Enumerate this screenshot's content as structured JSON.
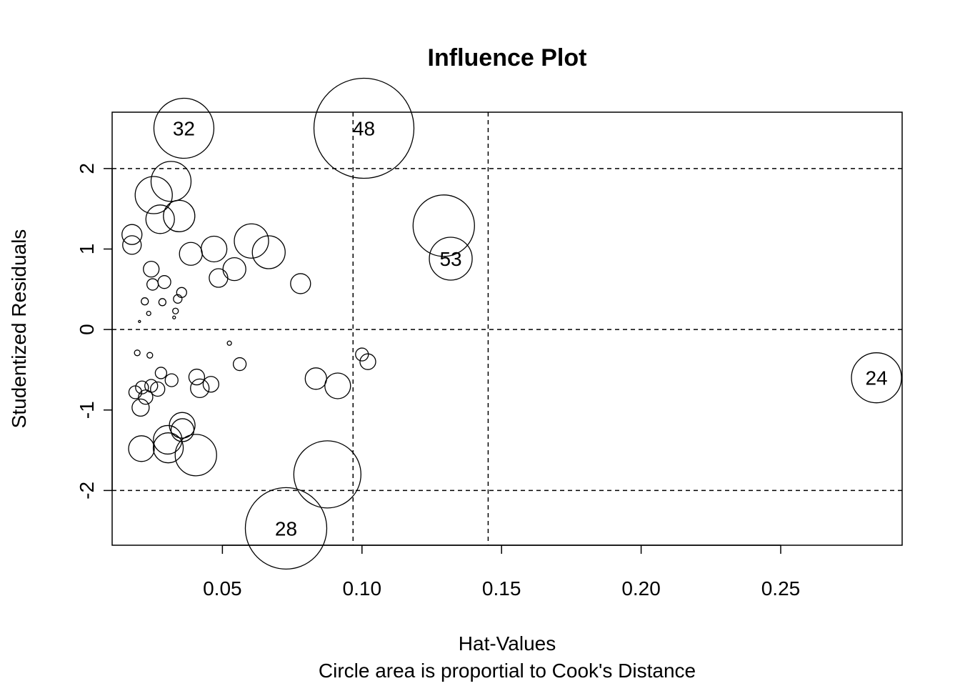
{
  "chart_data": {
    "type": "scatter",
    "title": "Influence Plot",
    "xlabel": "Hat-Values",
    "xlabel_sub": "Circle area is proportial to Cook's Distance",
    "ylabel": "Studentized Residuals",
    "xlim": [
      0.0105,
      0.2935
    ],
    "ylim": [
      -2.68,
      2.7
    ],
    "x_ticks": [
      0.05,
      0.1,
      0.15,
      0.2,
      0.25
    ],
    "x_tick_labels": [
      "0.05",
      "0.10",
      "0.15",
      "0.20",
      "0.25"
    ],
    "y_ticks": [
      -2,
      -1,
      0,
      1,
      2
    ],
    "y_tick_labels": [
      "-2",
      "-1",
      "0",
      "1",
      "2"
    ],
    "ref_lines": {
      "h": [
        -2,
        0,
        2
      ],
      "v": [
        0.0968,
        0.1452
      ]
    },
    "grid": false,
    "size_variable": "Cook's Distance",
    "points": [
      {
        "x": 0.0362,
        "y": 2.5,
        "r": 42
      },
      {
        "x": 0.1007,
        "y": 2.5,
        "r": 70
      },
      {
        "x": 0.0316,
        "y": 1.84,
        "r": 28
      },
      {
        "x": 0.0254,
        "y": 1.67,
        "r": 26
      },
      {
        "x": 0.0345,
        "y": 1.41,
        "r": 22
      },
      {
        "x": 0.0277,
        "y": 1.37,
        "r": 20
      },
      {
        "x": 0.1293,
        "y": 1.29,
        "r": 43
      },
      {
        "x": 0.0176,
        "y": 1.18,
        "r": 14
      },
      {
        "x": 0.0176,
        "y": 1.05,
        "r": 13
      },
      {
        "x": 0.0604,
        "y": 1.1,
        "r": 24
      },
      {
        "x": 0.0666,
        "y": 0.96,
        "r": 23
      },
      {
        "x": 0.047,
        "y": 1.0,
        "r": 18
      },
      {
        "x": 0.0387,
        "y": 0.94,
        "r": 16
      },
      {
        "x": 0.1318,
        "y": 0.88,
        "r": 30
      },
      {
        "x": 0.0543,
        "y": 0.75,
        "r": 16
      },
      {
        "x": 0.0486,
        "y": 0.64,
        "r": 13
      },
      {
        "x": 0.078,
        "y": 0.57,
        "r": 14
      },
      {
        "x": 0.0245,
        "y": 0.75,
        "r": 11
      },
      {
        "x": 0.0292,
        "y": 0.59,
        "r": 9
      },
      {
        "x": 0.025,
        "y": 0.56,
        "r": 8
      },
      {
        "x": 0.0354,
        "y": 0.46,
        "r": 7
      },
      {
        "x": 0.034,
        "y": 0.38,
        "r": 6
      },
      {
        "x": 0.0222,
        "y": 0.35,
        "r": 5
      },
      {
        "x": 0.0285,
        "y": 0.34,
        "r": 5
      },
      {
        "x": 0.0332,
        "y": 0.23,
        "r": 4
      },
      {
        "x": 0.0236,
        "y": 0.2,
        "r": 3
      },
      {
        "x": 0.0327,
        "y": 0.15,
        "r": 2
      },
      {
        "x": 0.0203,
        "y": 0.1,
        "r": 1.5
      },
      {
        "x": 0.0525,
        "y": -0.17,
        "r": 3
      },
      {
        "x": 0.0195,
        "y": -0.29,
        "r": 4
      },
      {
        "x": 0.024,
        "y": -0.32,
        "r": 4
      },
      {
        "x": 0.1,
        "y": -0.31,
        "r": 9
      },
      {
        "x": 0.1021,
        "y": -0.4,
        "r": 11
      },
      {
        "x": 0.0562,
        "y": -0.43,
        "r": 9
      },
      {
        "x": 0.028,
        "y": -0.54,
        "r": 8
      },
      {
        "x": 0.0408,
        "y": -0.59,
        "r": 11
      },
      {
        "x": 0.0318,
        "y": -0.63,
        "r": 9
      },
      {
        "x": 0.0835,
        "y": -0.61,
        "r": 15
      },
      {
        "x": 0.0459,
        "y": -0.68,
        "r": 11
      },
      {
        "x": 0.0913,
        "y": -0.7,
        "r": 18
      },
      {
        "x": 0.0419,
        "y": -0.73,
        "r": 13
      },
      {
        "x": 0.0245,
        "y": -0.7,
        "r": 9
      },
      {
        "x": 0.0268,
        "y": -0.74,
        "r": 10
      },
      {
        "x": 0.0212,
        "y": -0.72,
        "r": 9
      },
      {
        "x": 0.0188,
        "y": -0.78,
        "r": 9
      },
      {
        "x": 0.0225,
        "y": -0.84,
        "r": 10
      },
      {
        "x": 0.0207,
        "y": -0.97,
        "r": 12
      },
      {
        "x": 0.0356,
        "y": -1.19,
        "r": 18
      },
      {
        "x": 0.0357,
        "y": -1.25,
        "r": 16
      },
      {
        "x": 0.0304,
        "y": -1.37,
        "r": 20
      },
      {
        "x": 0.0306,
        "y": -1.47,
        "r": 21
      },
      {
        "x": 0.021,
        "y": -1.48,
        "r": 18
      },
      {
        "x": 0.0405,
        "y": -1.56,
        "r": 29
      },
      {
        "x": 0.0876,
        "y": -1.8,
        "r": 47
      },
      {
        "x": 0.0728,
        "y": -2.47,
        "r": 57
      },
      {
        "x": 0.2843,
        "y": -0.6,
        "r": 35
      }
    ],
    "labels": [
      {
        "text": "32",
        "x": 0.0362,
        "y": 2.5
      },
      {
        "text": "48",
        "x": 0.1007,
        "y": 2.5
      },
      {
        "text": "53",
        "x": 0.1318,
        "y": 0.88
      },
      {
        "text": "24",
        "x": 0.2843,
        "y": -0.6
      },
      {
        "text": "28",
        "x": 0.0728,
        "y": -2.47
      }
    ]
  }
}
